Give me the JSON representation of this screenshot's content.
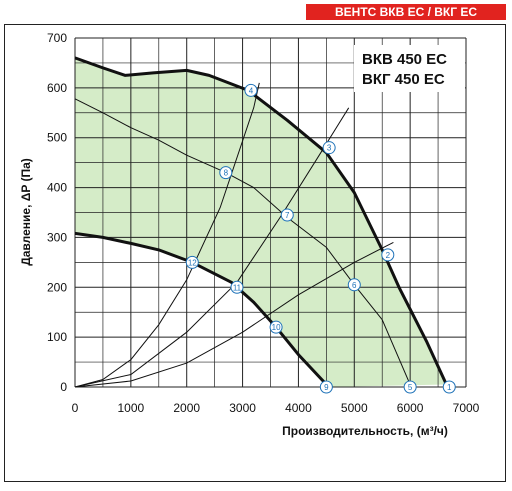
{
  "brand_tag": "ВЕНТС ВКВ ЕС / ВКГ ЕС",
  "colors": {
    "brand": "#e1231f",
    "fill": "#d5ecc8",
    "marker": "#1e72b8",
    "grid": "#222222"
  },
  "chart_data": {
    "type": "line",
    "model_labels": [
      "ВКВ 450 ЕС",
      "ВКГ 450 ЕС"
    ],
    "xlabel": "Производительность, (м³/ч)",
    "ylabel": "Давление, ΔP (Па)",
    "xlim": [
      0,
      7000
    ],
    "ylim": [
      0,
      700
    ],
    "x_ticks": [
      "0",
      "1000",
      "2000",
      "3000",
      "4000",
      "5000",
      "6000",
      "7000"
    ],
    "y_ticks": [
      "0",
      "100",
      "200",
      "300",
      "400",
      "500",
      "600",
      "700"
    ],
    "grid": true,
    "fan_curves": [
      {
        "role": "max-speed",
        "points": [
          [
            0,
            660
          ],
          [
            500,
            640
          ],
          [
            900,
            625
          ],
          [
            1400,
            630
          ],
          [
            2000,
            635
          ],
          [
            2400,
            625
          ],
          [
            3100,
            595
          ],
          [
            3800,
            535
          ],
          [
            4500,
            470
          ],
          [
            5000,
            390
          ],
          [
            5500,
            275
          ],
          [
            5800,
            200
          ],
          [
            6300,
            90
          ],
          [
            6650,
            5
          ]
        ]
      },
      {
        "role": "mid-speed",
        "points": [
          [
            0,
            578
          ],
          [
            500,
            550
          ],
          [
            1000,
            520
          ],
          [
            1500,
            495
          ],
          [
            2000,
            465
          ],
          [
            2700,
            430
          ],
          [
            3200,
            400
          ],
          [
            3800,
            340
          ],
          [
            4500,
            280
          ],
          [
            5000,
            205
          ],
          [
            5500,
            135
          ],
          [
            6000,
            5
          ]
        ]
      },
      {
        "role": "min-speed",
        "points": [
          [
            0,
            308
          ],
          [
            500,
            300
          ],
          [
            1000,
            288
          ],
          [
            1500,
            275
          ],
          [
            2100,
            250
          ],
          [
            2800,
            210
          ],
          [
            3200,
            170
          ],
          [
            3600,
            120
          ],
          [
            4000,
            65
          ],
          [
            4500,
            5
          ]
        ]
      }
    ],
    "system_curves": [
      {
        "points": [
          [
            0,
            0
          ],
          [
            500,
            15
          ],
          [
            1000,
            55
          ],
          [
            1500,
            125
          ],
          [
            2000,
            215
          ],
          [
            2600,
            360
          ],
          [
            3200,
            560
          ],
          [
            3300,
            610
          ]
        ]
      },
      {
        "points": [
          [
            0,
            0
          ],
          [
            1000,
            25
          ],
          [
            2000,
            110
          ],
          [
            2900,
            210
          ],
          [
            3700,
            345
          ],
          [
            4400,
            470
          ],
          [
            4900,
            560
          ]
        ]
      },
      {
        "points": [
          [
            0,
            0
          ],
          [
            1000,
            12
          ],
          [
            2000,
            48
          ],
          [
            3000,
            110
          ],
          [
            4000,
            185
          ],
          [
            5000,
            250
          ],
          [
            5700,
            290
          ]
        ]
      }
    ],
    "operating_points": [
      {
        "label": "1",
        "x": 6700,
        "y": 0
      },
      {
        "label": "2",
        "x": 5600,
        "y": 265
      },
      {
        "label": "3",
        "x": 4550,
        "y": 480
      },
      {
        "label": "4",
        "x": 3150,
        "y": 595
      },
      {
        "label": "5",
        "x": 6000,
        "y": 0
      },
      {
        "label": "6",
        "x": 5000,
        "y": 205
      },
      {
        "label": "7",
        "x": 3800,
        "y": 345
      },
      {
        "label": "8",
        "x": 2700,
        "y": 430
      },
      {
        "label": "9",
        "x": 4500,
        "y": 0
      },
      {
        "label": "10",
        "x": 3600,
        "y": 120
      },
      {
        "label": "11",
        "x": 2900,
        "y": 200
      },
      {
        "label": "12",
        "x": 2100,
        "y": 250
      }
    ]
  }
}
